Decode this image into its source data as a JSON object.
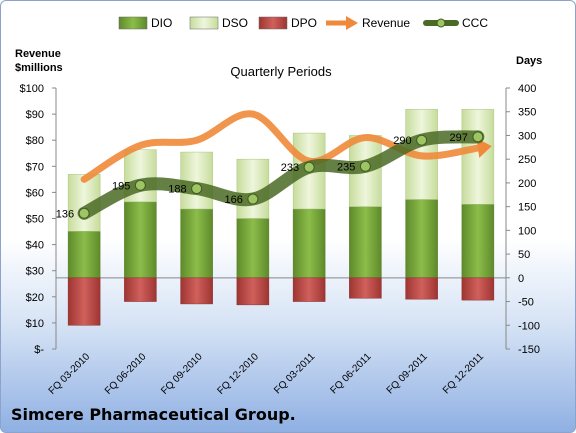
{
  "company": "Simcere Pharmaceutical Group.",
  "chart_data": {
    "type": "bar",
    "title": "Quarterly Periods",
    "ylabel_left": "Revenue\n$millions",
    "ylabel_right": "Days",
    "categories": [
      "FQ 03-2010",
      "FQ 06-2010",
      "FQ 09-2010",
      "FQ 12-2010",
      "FQ 03-2011",
      "FQ 06-2011",
      "FQ 09-2011",
      "FQ 12-2011"
    ],
    "left_axis": {
      "min": 0,
      "max": 100,
      "step": 10,
      "tick_labels": [
        "$-",
        "$10",
        "$20",
        "$30",
        "$40",
        "$50",
        "$60",
        "$70",
        "$80",
        "$90",
        "$100"
      ]
    },
    "right_axis": {
      "min": -150,
      "max": 400,
      "step": 50
    },
    "series": [
      {
        "name": "DIO",
        "axis": "right",
        "kind": "bar",
        "color": "#77a33a",
        "values": [
          98,
          160,
          145,
          125,
          145,
          150,
          165,
          155
        ]
      },
      {
        "name": "DSO",
        "axis": "right",
        "kind": "bar",
        "color": "#d7e8b4",
        "values": [
          120,
          110,
          120,
          125,
          160,
          150,
          190,
          200
        ]
      },
      {
        "name": "DPO",
        "axis": "right",
        "kind": "bar",
        "color": "#c0504d",
        "values": [
          -100,
          -50,
          -55,
          -57,
          -50,
          -43,
          -45,
          -47
        ]
      },
      {
        "name": "Revenue",
        "axis": "left",
        "kind": "line",
        "color": "#f08a3a",
        "values": [
          65,
          78,
          80,
          90,
          72,
          81,
          74,
          77
        ]
      },
      {
        "name": "CCC",
        "axis": "right",
        "kind": "line",
        "color": "#4f6b2b",
        "values": [
          136,
          195,
          188,
          166,
          233,
          235,
          290,
          297
        ]
      }
    ],
    "ccc_labels": [
      "136",
      "195",
      "188",
      "166",
      "233",
      "235",
      "290",
      "297"
    ],
    "legend_position": "top"
  }
}
